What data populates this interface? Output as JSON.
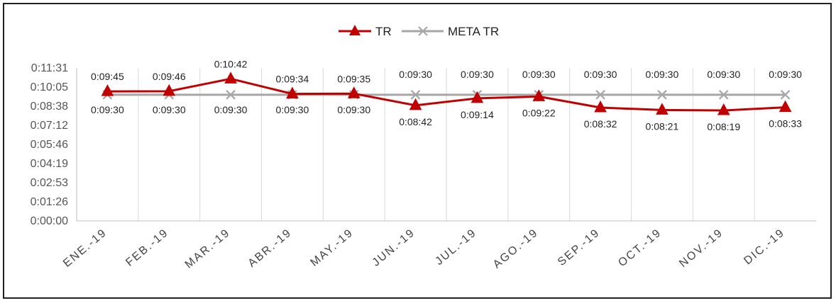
{
  "chart_data": {
    "type": "line",
    "categories": [
      "ENE.-19",
      "FEB.-19",
      "MAR.-19",
      "ABR.-19",
      "MAY.-19",
      "JUN.-19",
      "JUL.-19",
      "AGO.-19",
      "SEP.-19",
      "OCT.-19",
      "NOV.-19",
      "DIC.-19"
    ],
    "series": [
      {
        "name": "TR",
        "color": "#c00000",
        "marker": "triangle",
        "values": [
          "0:09:45",
          "0:09:46",
          "0:10:42",
          "0:09:34",
          "0:09:35",
          "0:08:42",
          "0:09:14",
          "0:09:22",
          "0:08:32",
          "0:08:21",
          "0:08:19",
          "0:08:33"
        ]
      },
      {
        "name": "META TR",
        "color": "#a6a6a6",
        "marker": "x",
        "values": [
          "0:09:30",
          "0:09:30",
          "0:09:30",
          "0:09:30",
          "0:09:30",
          "0:09:30",
          "0:09:30",
          "0:09:30",
          "0:09:30",
          "0:09:30",
          "0:09:30",
          "0:09:30"
        ]
      }
    ],
    "yticks": [
      "0:00:00",
      "0:01:26",
      "0:02:53",
      "0:04:19",
      "0:05:46",
      "0:07:12",
      "0:08:38",
      "0:10:05",
      "0:11:31"
    ],
    "ylim": [
      "0:00:00",
      "0:11:31"
    ],
    "grid": "vertical",
    "legend": "top-center",
    "title": "",
    "xlabel": "",
    "ylabel": ""
  }
}
